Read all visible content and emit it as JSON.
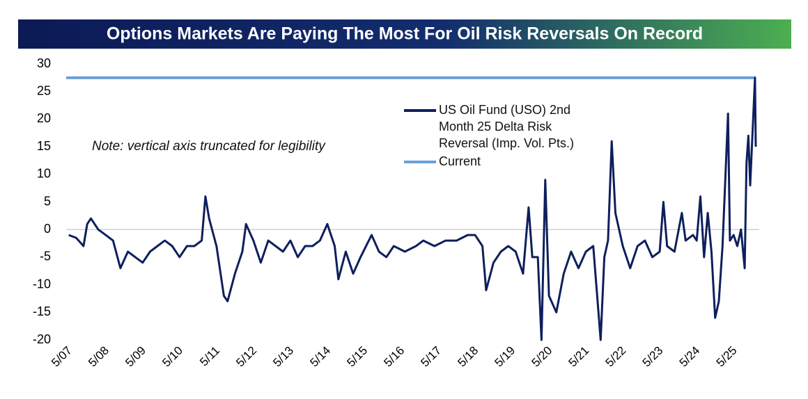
{
  "chart_data": {
    "type": "line",
    "title": "Options Markets Are Paying The Most For Oil Risk Reversals On Record",
    "annotation": "Note: vertical axis truncated for legibility",
    "x": [
      2007.4,
      2007.6,
      2007.8,
      2007.9,
      2008.0,
      2008.2,
      2008.4,
      2008.6,
      2008.8,
      2009.0,
      2009.2,
      2009.4,
      2009.6,
      2009.8,
      2010.0,
      2010.2,
      2010.4,
      2010.6,
      2010.8,
      2011.0,
      2011.1,
      2011.2,
      2011.4,
      2011.6,
      2011.7,
      2011.9,
      2012.1,
      2012.2,
      2012.4,
      2012.6,
      2012.8,
      2013.0,
      2013.2,
      2013.4,
      2013.6,
      2013.8,
      2014.0,
      2014.2,
      2014.4,
      2014.6,
      2014.7,
      2014.9,
      2015.1,
      2015.3,
      2015.6,
      2015.8,
      2016.0,
      2016.2,
      2016.5,
      2016.8,
      2017.0,
      2017.3,
      2017.6,
      2017.9,
      2018.2,
      2018.4,
      2018.6,
      2018.7,
      2018.9,
      2019.1,
      2019.3,
      2019.5,
      2019.7,
      2019.85,
      2019.95,
      2020.1,
      2020.2,
      2020.3,
      2020.4,
      2020.6,
      2020.8,
      2021.0,
      2021.2,
      2021.4,
      2021.6,
      2021.8,
      2021.9,
      2022.0,
      2022.1,
      2022.2,
      2022.4,
      2022.6,
      2022.8,
      2023.0,
      2023.2,
      2023.4,
      2023.5,
      2023.6,
      2023.8,
      2024.0,
      2024.1,
      2024.3,
      2024.4,
      2024.5,
      2024.6,
      2024.7,
      2024.8,
      2024.9,
      2025.0,
      2025.1,
      2025.25,
      2025.3,
      2025.4,
      2025.5,
      2025.6,
      2025.7,
      2025.75,
      2025.8,
      2025.85,
      2025.98,
      2026.0
    ],
    "series": [
      {
        "name": "US Oil Fund (USO) 2nd Month 25 Delta Risk Reversal (Imp. Vol. Pts.)",
        "color": "#0d1f5c",
        "values": [
          -1,
          -1.5,
          -3,
          1,
          2,
          0,
          -1,
          -2,
          -7,
          -4,
          -5,
          -6,
          -4,
          -3,
          -2,
          -3,
          -5,
          -3,
          -3,
          -2,
          6,
          2,
          -3,
          -12,
          -13,
          -8,
          -4,
          1,
          -2,
          -6,
          -2,
          -3,
          -4,
          -2,
          -5,
          -3,
          -3,
          -2,
          1,
          -3,
          -9,
          -4,
          -8,
          -5,
          -1,
          -4,
          -5,
          -3,
          -4,
          -3,
          -2,
          -3,
          -2,
          -2,
          -1,
          -1,
          -3,
          -11,
          -6,
          -4,
          -3,
          -4,
          -8,
          4,
          -5,
          -5,
          -20,
          9,
          -12,
          -15,
          -8,
          -4,
          -7,
          -4,
          -3,
          -20,
          -5,
          -2,
          16,
          3,
          -3,
          -7,
          -3,
          -2,
          -5,
          -4,
          5,
          -3,
          -4,
          3,
          -2,
          -1,
          -2,
          6,
          -5,
          3,
          -4,
          -16,
          -13,
          -3,
          21,
          -2,
          -1,
          -3,
          0,
          -7,
          12,
          17,
          8,
          27.5,
          15
        ]
      }
    ],
    "reference_line": {
      "name": "Current",
      "value": 27.5,
      "color": "#6b9fd8"
    },
    "xlim": [
      2007.33,
      2026.0
    ],
    "xticks": [
      {
        "value": 2007.33,
        "label": "5/07"
      },
      {
        "value": 2008.33,
        "label": "5/08"
      },
      {
        "value": 2009.33,
        "label": "5/09"
      },
      {
        "value": 2010.33,
        "label": "5/10"
      },
      {
        "value": 2011.33,
        "label": "5/11"
      },
      {
        "value": 2012.33,
        "label": "5/12"
      },
      {
        "value": 2013.33,
        "label": "5/13"
      },
      {
        "value": 2014.33,
        "label": "5/14"
      },
      {
        "value": 2015.33,
        "label": "5/15"
      },
      {
        "value": 2016.33,
        "label": "5/16"
      },
      {
        "value": 2017.33,
        "label": "5/17"
      },
      {
        "value": 2018.33,
        "label": "5/18"
      },
      {
        "value": 2019.33,
        "label": "5/19"
      },
      {
        "value": 2020.33,
        "label": "5/20"
      },
      {
        "value": 2021.33,
        "label": "5/21"
      },
      {
        "value": 2022.33,
        "label": "5/22"
      },
      {
        "value": 2023.33,
        "label": "5/23"
      },
      {
        "value": 2024.33,
        "label": "5/24"
      },
      {
        "value": 2025.33,
        "label": "5/25"
      }
    ],
    "ylim": [
      -20,
      30
    ],
    "yticks": [
      -20,
      -15,
      -10,
      -5,
      0,
      5,
      10,
      15,
      20,
      25,
      30
    ],
    "zero_line": true
  }
}
